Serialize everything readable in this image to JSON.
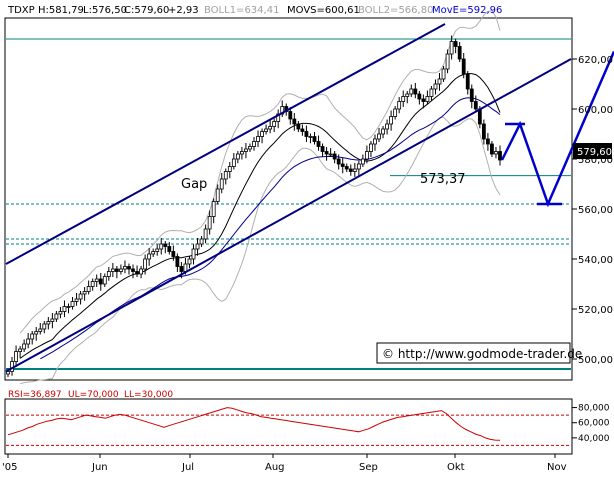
{
  "header": {
    "symbol": "TDXP",
    "high": "H:581,79",
    "low": "L:576,50",
    "close": "C:579,60",
    "change": "+2,93",
    "boll1": "BOLL1=634,41",
    "movs": "MOVS=600,61",
    "boll2": "BOLL2=566,80",
    "move": "MovE=592,96"
  },
  "rsi_header": {
    "rsi": "RSI=36,897",
    "ul": "UL=70,000",
    "ll": "LL=30,000"
  },
  "annotations": {
    "gap": "Gap",
    "level": "573,37",
    "copyright": "© http://www.godmode-trader.de",
    "last_price": "579,60"
  },
  "colors": {
    "candles": "#000000",
    "sma": "#000000",
    "ema": "#00008b",
    "bollinger": "#b0b0b0",
    "channel": "#000080",
    "horizontal": "#008080",
    "projection": "#0000cd",
    "rsi": "#cc0000",
    "rsi_bounds": "#cc0000",
    "last_price_box": "#000000"
  },
  "chart_data": [
    {
      "type": "candlestick",
      "x_ticks": [
        "'05",
        "Jun",
        "Jul",
        "Aug",
        "Sep",
        "Okt",
        "Nov"
      ],
      "y_ticks": [
        "500,00",
        "520,00",
        "540,00",
        "560,00",
        "580,00",
        "600,00",
        "620,00"
      ],
      "ylim": [
        492,
        636
      ],
      "ohlc_close": [
        495,
        499,
        503,
        504,
        506,
        508,
        510,
        511,
        512,
        514,
        515,
        516,
        518,
        519,
        521,
        521,
        523,
        524,
        526,
        527,
        529,
        531,
        532,
        530,
        533,
        535,
        536,
        535,
        536,
        537,
        536,
        535,
        534,
        536,
        540,
        542,
        543,
        544,
        546,
        545,
        543,
        541,
        537,
        535,
        538,
        540,
        544,
        546,
        548,
        552,
        557,
        563,
        568,
        572,
        575,
        577,
        580,
        582,
        583,
        584,
        585,
        587,
        589,
        591,
        592,
        593,
        595,
        598,
        601,
        599,
        596,
        594,
        592,
        591,
        589,
        589,
        587,
        585,
        583,
        582,
        582,
        580,
        578,
        577,
        576,
        575,
        576,
        578,
        580,
        583,
        586,
        588,
        590,
        592,
        594,
        597,
        600,
        603,
        605,
        606,
        608,
        606,
        604,
        603,
        605,
        608,
        610,
        612,
        616,
        622,
        627,
        625,
        620,
        614,
        608,
        603,
        600,
        594,
        588,
        586,
        582,
        583,
        579.6
      ],
      "sma": "MOVS",
      "ema": "MovE",
      "bollinger": [
        "BOLL1",
        "BOLL2"
      ],
      "horizontal_levels": [
        628,
        573.37,
        562,
        548,
        546,
        496
      ],
      "channel": {
        "upper": {
          "from": [
            "'05",
            538
          ],
          "to": [
            "Okt",
            634
          ]
        },
        "lower": {
          "from": [
            "'05",
            495
          ],
          "to": [
            "Nov",
            620
          ]
        }
      },
      "projection": [
        579.6,
        594,
        562,
        623
      ]
    },
    {
      "type": "line",
      "name": "RSI",
      "y_ticks": [
        "40,000",
        "60,000",
        "80,000"
      ],
      "ylim": [
        20,
        90
      ],
      "upper_bound": 70,
      "lower_bound": 30,
      "values": [
        44,
        46,
        48,
        50,
        53,
        55,
        58,
        60,
        62,
        63,
        65,
        66,
        65,
        64,
        66,
        68,
        70,
        69,
        68,
        67,
        66,
        68,
        70,
        71,
        70,
        68,
        66,
        64,
        62,
        60,
        58,
        56,
        54,
        56,
        58,
        60,
        62,
        64,
        66,
        68,
        70,
        72,
        74,
        76,
        78,
        80,
        79,
        77,
        75,
        73,
        72,
        70,
        68,
        67,
        66,
        65,
        64,
        63,
        62,
        61,
        60,
        59,
        58,
        57,
        56,
        55,
        54,
        53,
        52,
        51,
        50,
        49,
        48,
        50,
        52,
        55,
        58,
        61,
        63,
        65,
        67,
        68,
        69,
        70,
        71,
        72,
        73,
        74,
        75,
        76,
        72,
        66,
        60,
        55,
        51,
        48,
        45,
        43,
        40,
        38,
        37,
        36.9
      ]
    }
  ]
}
